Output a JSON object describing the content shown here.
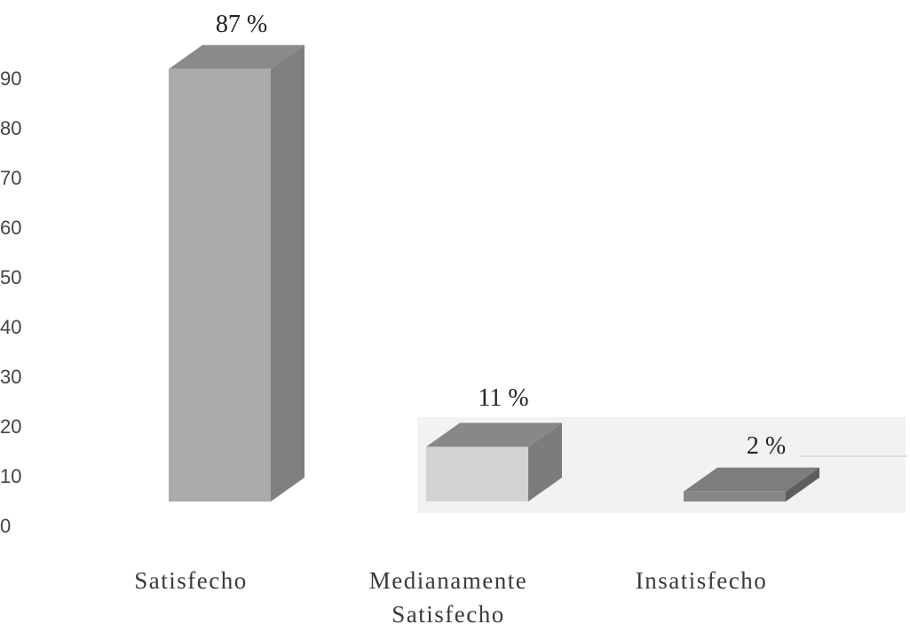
{
  "chart_data": {
    "type": "bar",
    "categories": [
      "Satisfecho",
      "Medianamente Satisfecho",
      "Insatisfecho"
    ],
    "category_lines": [
      [
        "Satisfecho"
      ],
      [
        "Medianamente",
        "Satisfecho"
      ],
      [
        "Insatisfecho"
      ]
    ],
    "values": [
      87,
      11,
      2
    ],
    "data_labels": [
      "87 %",
      "11 %",
      "2 %"
    ],
    "yticks": [
      0,
      10,
      20,
      30,
      40,
      50,
      60,
      70,
      80,
      90
    ],
    "ylim": [
      0,
      90
    ],
    "title": "",
    "xlabel": "",
    "ylabel": "",
    "grid": false,
    "legend": "none",
    "colors": {
      "bars": [
        {
          "front": "#ababab",
          "side": "#7f7f7f",
          "top": "#8a8a8a"
        },
        {
          "front": "#d3d3d3",
          "side": "#7c7c7c",
          "top": "#888888"
        },
        {
          "front": "#888888",
          "side": "#5e5e5e",
          "top": "#7d7d7d"
        }
      ],
      "floor": "#f2f2f2"
    }
  }
}
